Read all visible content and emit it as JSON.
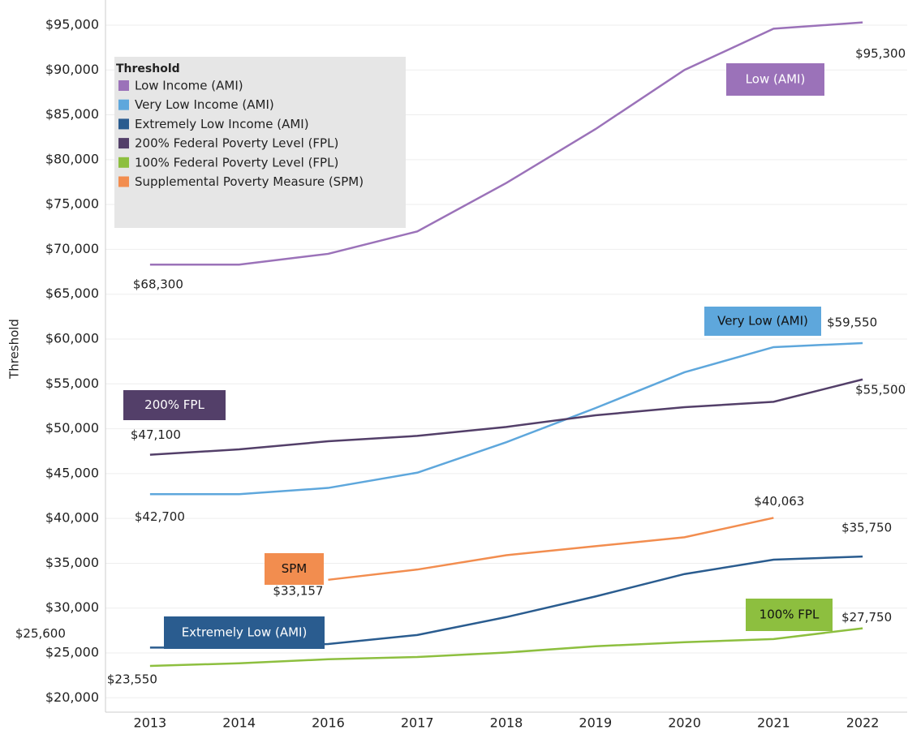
{
  "chart_data": {
    "type": "line",
    "y_label": "Threshold",
    "legend_title": "Threshold",
    "categories": [
      "2013",
      "2014",
      "2016",
      "2017",
      "2018",
      "2019",
      "2020",
      "2021",
      "2022"
    ],
    "ylim": [
      18400,
      97800
    ],
    "yticks": [
      {
        "value": 20000,
        "label": "$20,000"
      },
      {
        "value": 25000,
        "label": "$25,000"
      },
      {
        "value": 30000,
        "label": "$30,000"
      },
      {
        "value": 35000,
        "label": "$35,000"
      },
      {
        "value": 40000,
        "label": "$40,000"
      },
      {
        "value": 45000,
        "label": "$45,000"
      },
      {
        "value": 50000,
        "label": "$50,000"
      },
      {
        "value": 55000,
        "label": "$55,000"
      },
      {
        "value": 60000,
        "label": "$60,000"
      },
      {
        "value": 65000,
        "label": "$65,000"
      },
      {
        "value": 70000,
        "label": "$70,000"
      },
      {
        "value": 75000,
        "label": "$75,000"
      },
      {
        "value": 80000,
        "label": "$80,000"
      },
      {
        "value": 85000,
        "label": "$85,000"
      },
      {
        "value": 90000,
        "label": "$90,000"
      },
      {
        "value": 95000,
        "label": "$95,000"
      }
    ],
    "grid": true,
    "legend_position": "upper left",
    "series": [
      {
        "name": "Low Income (AMI)",
        "tag": "Low (AMI)",
        "color": "#9b72b9",
        "values": [
          68300,
          68300,
          69500,
          72000,
          77400,
          83400,
          90000,
          94600,
          95300
        ],
        "value_labels": [
          "$68,300",
          null,
          null,
          null,
          null,
          null,
          null,
          null,
          "$95,300"
        ]
      },
      {
        "name": "Very Low Income (AMI)",
        "tag": "Very Low (AMI)",
        "color": "#5ea7dc",
        "values": [
          42700,
          42700,
          43400,
          45100,
          48500,
          52300,
          56300,
          59100,
          59550
        ],
        "value_labels": [
          "$42,700",
          null,
          null,
          null,
          null,
          null,
          null,
          null,
          "$59,550"
        ]
      },
      {
        "name": "Extremely Low Income (AMI)",
        "tag": "Extremely Low (AMI)",
        "color": "#2a5c8f",
        "values": [
          25600,
          25600,
          26000,
          27000,
          29000,
          31300,
          33800,
          35400,
          35750
        ],
        "value_labels": [
          "$25,600",
          null,
          null,
          null,
          null,
          null,
          null,
          null,
          "$35,750"
        ]
      },
      {
        "name": "200% Federal Poverty Level (FPL)",
        "tag": "200% FPL",
        "color": "#533f69",
        "values": [
          47100,
          47700,
          48600,
          49200,
          50200,
          51500,
          52400,
          53000,
          55500
        ],
        "value_labels": [
          "$47,100",
          null,
          null,
          null,
          null,
          null,
          null,
          null,
          "$55,500"
        ]
      },
      {
        "name": "100% Federal Poverty Level (FPL)",
        "tag": "100% FPL",
        "color": "#8dbf3f",
        "values": [
          23550,
          23850,
          24300,
          24550,
          25050,
          25750,
          26200,
          26550,
          27750
        ],
        "value_labels": [
          "$23,550",
          null,
          null,
          null,
          null,
          null,
          null,
          null,
          "$27,750"
        ]
      },
      {
        "name": "Supplemental Poverty Measure (SPM)",
        "tag": "SPM",
        "color": "#f28d4f",
        "values": [
          null,
          null,
          33157,
          34300,
          35900,
          36900,
          37900,
          40063,
          null
        ],
        "value_labels": [
          null,
          null,
          "$33,157",
          null,
          null,
          null,
          null,
          "$40,063",
          null
        ]
      }
    ]
  }
}
